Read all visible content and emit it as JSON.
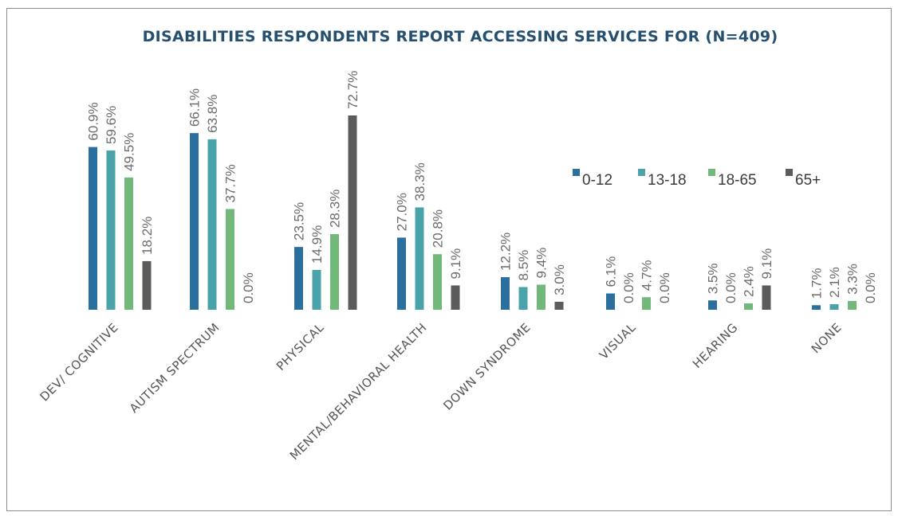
{
  "chart_data": {
    "type": "bar",
    "title": "DISABILITIES RESPONDENTS REPORT ACCESSING SERVICES FOR (N=409)",
    "categories": [
      "DEV/ COGNITIVE",
      "AUTISM SPECTRUM",
      "PHYSICAL",
      "MENTAL/BEHAVIORAL HEALTH",
      "DOWN SYNDROME",
      "VISUAL",
      "HEARING",
      "NONE"
    ],
    "series": [
      {
        "name": "0-12",
        "color": "#2a6f9e",
        "values": [
          60.9,
          66.1,
          23.5,
          27.0,
          12.2,
          6.1,
          3.5,
          1.7
        ]
      },
      {
        "name": "13-18",
        "color": "#4aa3a8",
        "values": [
          59.6,
          63.8,
          14.9,
          38.3,
          8.5,
          0.0,
          0.0,
          2.1
        ]
      },
      {
        "name": "18-65",
        "color": "#72b87a",
        "values": [
          49.5,
          37.7,
          28.3,
          20.8,
          9.4,
          4.7,
          2.4,
          3.3
        ]
      },
      {
        "name": "65+",
        "color": "#5b5b5b",
        "values": [
          18.2,
          0.0,
          72.7,
          9.1,
          3.0,
          0.0,
          9.1,
          0.0
        ]
      }
    ],
    "data_labels": [
      [
        "60.9%",
        "59.6%",
        "49.5%",
        "18.2%"
      ],
      [
        "66.1%",
        "63.8%",
        "37.7%",
        "0.0%"
      ],
      [
        "23.5%",
        "14.9%",
        "28.3%",
        "72.7%"
      ],
      [
        "27.0%",
        "38.3%",
        "20.8%",
        "9.1%"
      ],
      [
        "12.2%",
        "8.5%",
        "9.4%",
        "3.0%"
      ],
      [
        "6.1%",
        "0.0%",
        "4.7%",
        "0.0%"
      ],
      [
        "3.5%",
        "0.0%",
        "2.4%",
        "9.1%"
      ],
      [
        "1.7%",
        "2.1%",
        "3.3%",
        "0.0%"
      ]
    ],
    "ylim": [
      0,
      80
    ],
    "grid": false,
    "legend_position": "right"
  }
}
